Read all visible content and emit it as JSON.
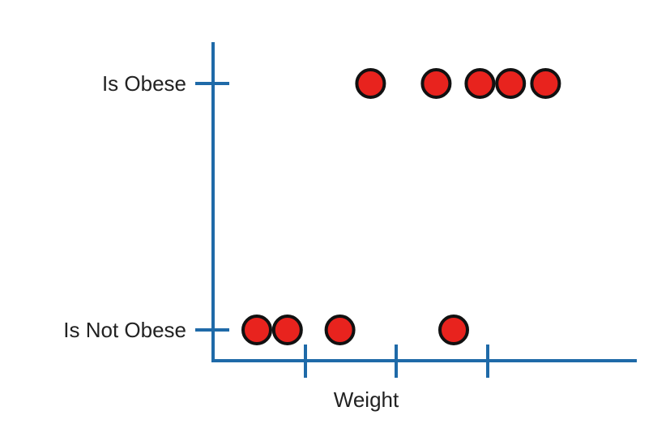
{
  "chart_data": {
    "type": "scatter",
    "xlabel": "Weight",
    "ylabel": "",
    "y_categories": [
      "Is Not Obese",
      "Is Obese"
    ],
    "x_ticks_count": 3,
    "xlim": [
      0,
      100
    ],
    "grid": false,
    "legend": "none",
    "colors": {
      "axis": "#1f6aa8",
      "point_fill": "#e8231e",
      "point_stroke": "#111111"
    },
    "series": [
      {
        "points": [
          {
            "x": 10,
            "y": "Is Not Obese"
          },
          {
            "x": 17,
            "y": "Is Not Obese"
          },
          {
            "x": 29,
            "y": "Is Not Obese"
          },
          {
            "x": 55,
            "y": "Is Not Obese"
          },
          {
            "x": 36,
            "y": "Is Obese"
          },
          {
            "x": 51,
            "y": "Is Obese"
          },
          {
            "x": 61,
            "y": "Is Obese"
          },
          {
            "x": 68,
            "y": "Is Obese"
          },
          {
            "x": 76,
            "y": "Is Obese"
          }
        ]
      }
    ]
  }
}
